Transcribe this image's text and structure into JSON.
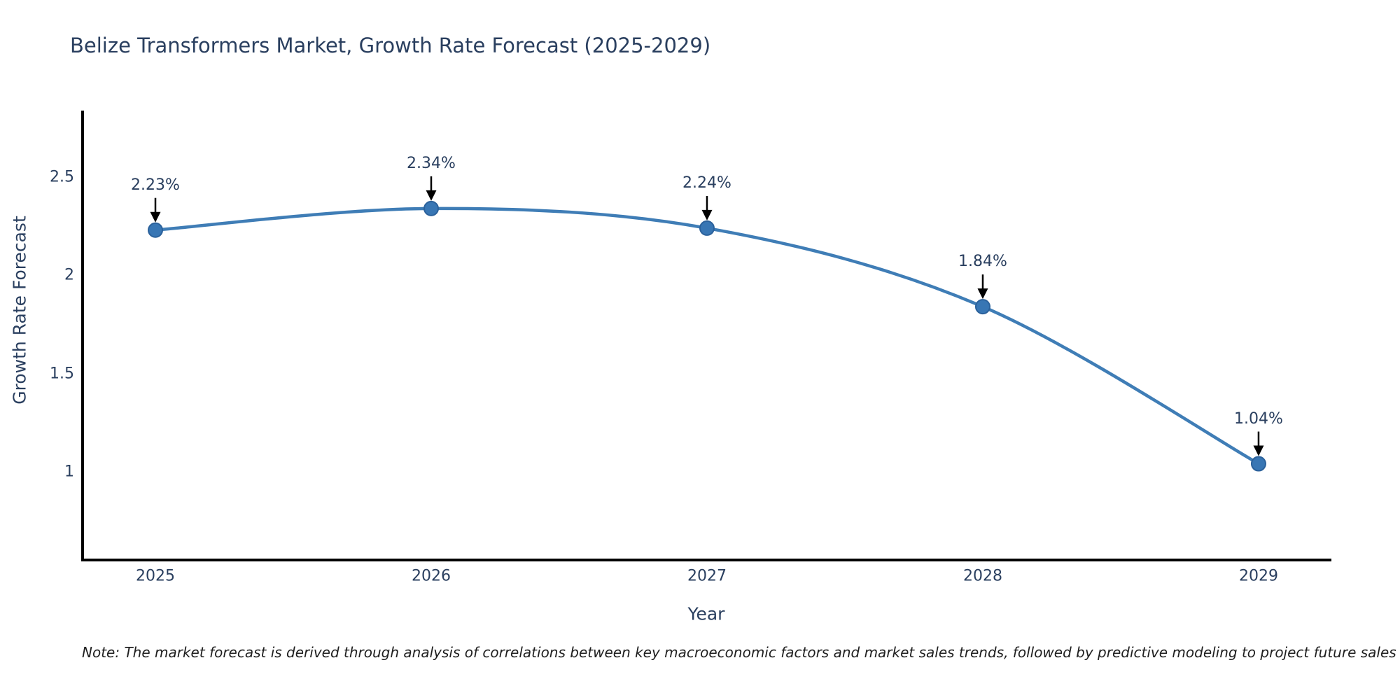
{
  "chart_data": {
    "type": "line",
    "title": "Belize Transformers Market, Growth Rate Forecast (2025-2029)",
    "xlabel": "Year",
    "ylabel": "Growth Rate Forecast",
    "x": [
      2025,
      2026,
      2027,
      2028,
      2029
    ],
    "series": [
      {
        "name": "Growth Rate Forecast",
        "values": [
          2.23,
          2.34,
          2.24,
          1.84,
          1.04
        ]
      }
    ],
    "point_labels": [
      "2.23%",
      "2.34%",
      "2.24%",
      "1.84%",
      "1.04%"
    ],
    "xticks": [
      "2025",
      "2026",
      "2027",
      "2028",
      "2029"
    ],
    "yticks": [
      "1",
      "1.5",
      "2",
      "2.5"
    ],
    "ytick_values": [
      1,
      1.5,
      2,
      2.5
    ],
    "xlim": [
      2024.736,
      2029.259
    ],
    "ylim": [
      0.55,
      2.8315
    ],
    "grid": false,
    "legend": "none",
    "line_shape": "spline",
    "colors": {
      "line": "#3f7db6",
      "marker": "#3876b4",
      "marker_edge": "#2b619b",
      "axis": "#000000",
      "text": "#2a3f5f",
      "arrow": "#000000"
    },
    "note": "Note: The market forecast is derived through analysis of correlations between key macroeconomic factors and market sales trends, followed by predictive modeling to project future sales"
  }
}
